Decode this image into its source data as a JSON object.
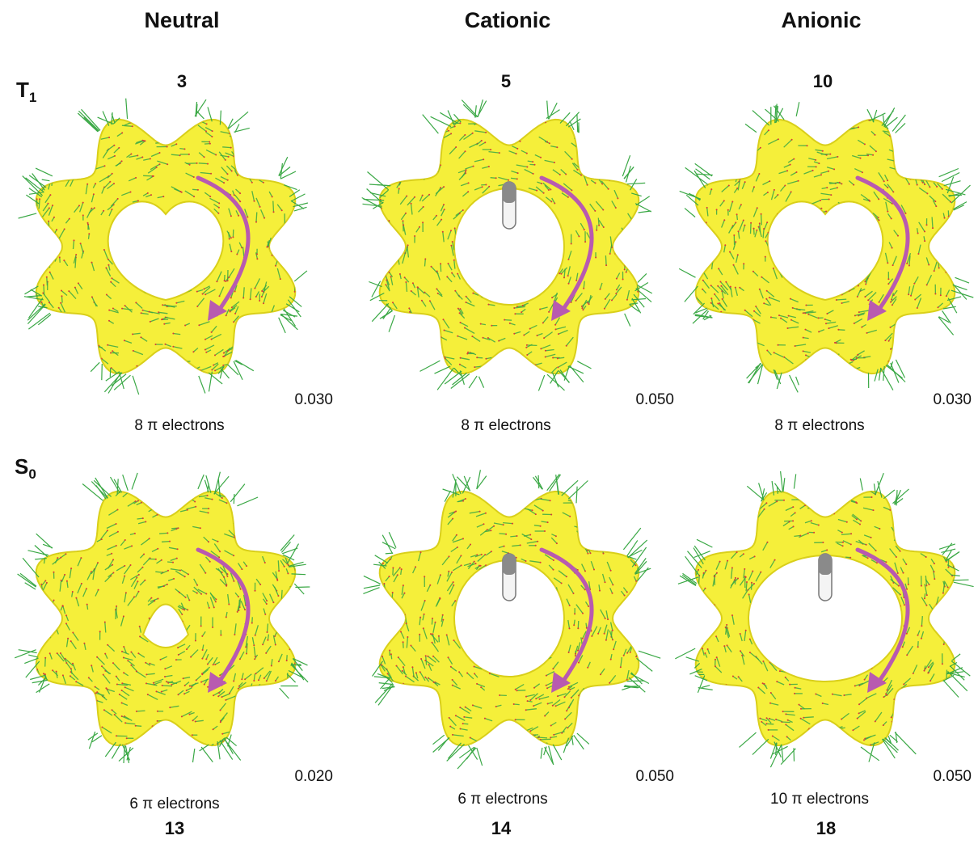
{
  "columns": [
    "Neutral",
    "Cationic",
    "Anionic"
  ],
  "rows": [
    {
      "label": "T",
      "label_sub": "1",
      "panels": [
        {
          "compound": "3",
          "scale": "0.030",
          "electrons": "8 π electrons",
          "hole": "heart"
        },
        {
          "compound": "5",
          "scale": "0.050",
          "electrons": "8 π electrons",
          "hole": "round"
        },
        {
          "compound": "10",
          "scale": "0.030",
          "electrons": "8 π electrons",
          "hole": "heart"
        }
      ]
    },
    {
      "label": "S",
      "label_sub": "0",
      "panels": [
        {
          "compound": "13",
          "scale": "0.020",
          "electrons": "6 π electrons",
          "hole": "small"
        },
        {
          "compound": "14",
          "scale": "0.050",
          "electrons": "6 π electrons",
          "hole": "round"
        },
        {
          "compound": "18",
          "scale": "0.050",
          "electrons": "10 π electrons",
          "hole": "wide"
        }
      ]
    }
  ],
  "colors": {
    "surface": "#f5ef3a",
    "surface_edge": "#d9cf1a",
    "vector_green": "#3aa845",
    "vector_red": "#d83a3a",
    "arrow": "#b85ab0"
  },
  "icons": {
    "current_direction": "curved-arrow-icon"
  }
}
